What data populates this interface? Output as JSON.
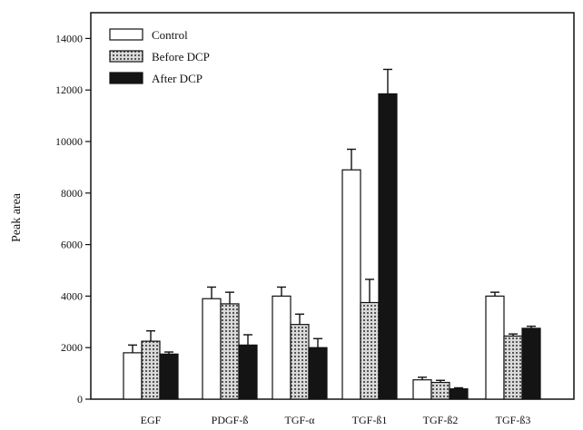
{
  "chart_data": {
    "type": "bar",
    "title": "",
    "xlabel": "",
    "ylabel": "Peak area",
    "ylim": [
      0,
      15000
    ],
    "yticks": [
      0,
      2000,
      4000,
      6000,
      8000,
      10000,
      12000,
      14000
    ],
    "grid": false,
    "legend_position": "top-left",
    "categories": [
      "EGF",
      "PDGF-ß",
      "TGF-α",
      "TGF-ß1",
      "TGF-ß2",
      "TGF-ß3"
    ],
    "series": [
      {
        "name": "Control",
        "style": "white",
        "values": [
          1800,
          3900,
          4000,
          8900,
          750,
          4000
        ],
        "errors": [
          300,
          450,
          350,
          800,
          100,
          150
        ]
      },
      {
        "name": "Before DCP",
        "style": "hatched",
        "values": [
          2250,
          3700,
          2900,
          3750,
          650,
          2450
        ],
        "errors": [
          400,
          450,
          400,
          900,
          80,
          80
        ]
      },
      {
        "name": "After DCP",
        "style": "black",
        "values": [
          1750,
          2100,
          2000,
          11850,
          400,
          2750
        ],
        "errors": [
          80,
          400,
          350,
          950,
          40,
          80
        ]
      }
    ],
    "colors": {
      "white_fill": "#ffffff",
      "hatch_bg": "#d9d9d9",
      "hatch_line": "#555555",
      "black_fill": "#141414",
      "axis": "#111111"
    }
  }
}
